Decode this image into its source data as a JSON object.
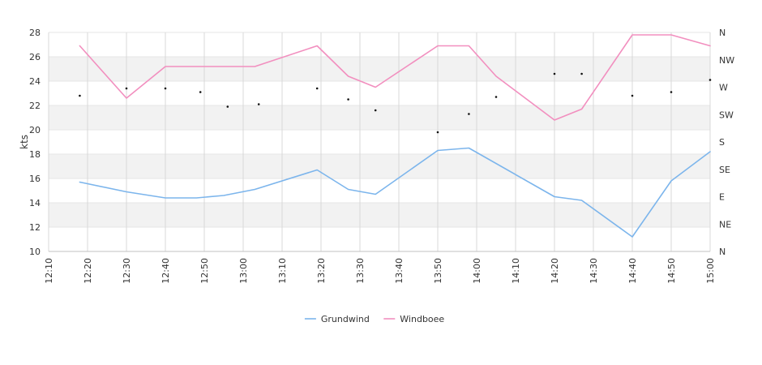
{
  "chart_data": {
    "type": "line",
    "ylabel": "kts",
    "ylim": [
      10,
      28
    ],
    "y_ticks": [
      10,
      12,
      14,
      16,
      18,
      20,
      22,
      24,
      26,
      28
    ],
    "y2_ticks": [
      "N",
      "NE",
      "E",
      "SE",
      "S",
      "SW",
      "W",
      "NW",
      "N"
    ],
    "x_ticks": [
      "12:10",
      "12:20",
      "12:30",
      "12:40",
      "12:50",
      "13:00",
      "13:10",
      "13:20",
      "13:30",
      "13:40",
      "13:50",
      "14:00",
      "14:10",
      "14:20",
      "14:30",
      "14:40",
      "14:50",
      "15:00"
    ],
    "xlim": [
      "12:10",
      "15:00"
    ],
    "grid": true,
    "legend_position": "bottom",
    "series": [
      {
        "name": "Grundwind",
        "color": "#7cb5ec",
        "x": [
          "12:18",
          "12:30",
          "12:40",
          "12:48",
          "12:55",
          "13:03",
          "13:19",
          "13:27",
          "13:34",
          "13:50",
          "13:58",
          "14:20",
          "14:27",
          "14:40",
          "14:50",
          "15:00"
        ],
        "values": [
          15.7,
          14.9,
          14.4,
          14.4,
          14.6,
          15.1,
          16.7,
          15.1,
          14.7,
          18.3,
          18.5,
          14.5,
          14.2,
          11.2,
          15.8,
          18.2
        ]
      },
      {
        "name": "Windboee",
        "color": "#f28fbf",
        "x": [
          "12:18",
          "12:30",
          "12:40",
          "12:48",
          "12:55",
          "13:03",
          "13:19",
          "13:27",
          "13:34",
          "13:50",
          "13:58",
          "14:05",
          "14:20",
          "14:27",
          "14:40",
          "14:50",
          "15:00"
        ],
        "values": [
          26.9,
          22.6,
          25.2,
          25.2,
          25.2,
          25.2,
          26.9,
          24.4,
          23.5,
          26.9,
          26.9,
          24.4,
          20.8,
          21.7,
          27.8,
          27.8,
          26.9
        ]
      }
    ],
    "direction_markers": {
      "x": [
        "12:18",
        "12:30",
        "12:40",
        "12:49",
        "12:56",
        "13:04",
        "13:19",
        "13:27",
        "13:34",
        "13:50",
        "13:58",
        "14:05",
        "14:20",
        "14:27",
        "14:40",
        "14:50",
        "15:00"
      ],
      "values": [
        22.8,
        23.4,
        23.4,
        23.1,
        21.9,
        22.1,
        23.4,
        22.5,
        21.6,
        19.8,
        21.3,
        22.7,
        24.6,
        24.6,
        22.8,
        23.1,
        24.1
      ]
    }
  }
}
